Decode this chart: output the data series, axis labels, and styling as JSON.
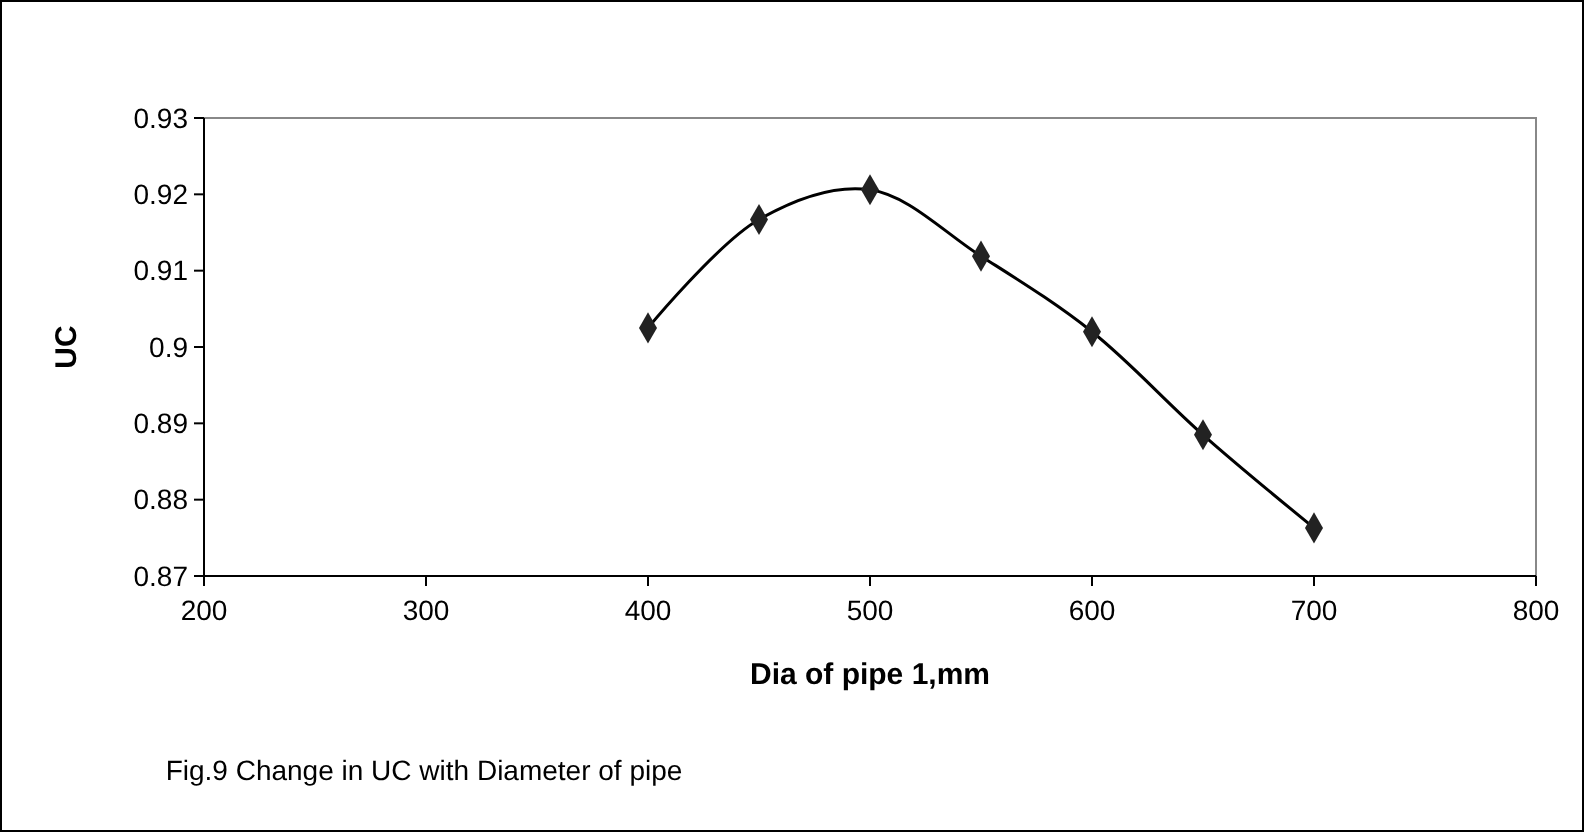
{
  "chart_data": {
    "type": "line",
    "xlabel": "Dia of pipe 1,mm",
    "ylabel": "UC",
    "annotations": [
      "Fig.9 Change in UC with Diameter of pipe"
    ],
    "x": [
      400,
      450,
      500,
      550,
      600,
      650,
      700
    ],
    "series": [
      {
        "color": "#000000",
        "values": [
          0.9025,
          0.9167,
          0.9206,
          0.9119,
          0.902,
          0.8885,
          0.8763
        ]
      }
    ],
    "xlim": [
      200,
      800
    ],
    "xticks": [
      200,
      300,
      400,
      500,
      600,
      700,
      800
    ],
    "ylim": [
      0.87,
      0.93
    ],
    "yticks": [
      0.87,
      0.88,
      0.89,
      0.9,
      0.91,
      0.92,
      0.93
    ],
    "marker": "diamond",
    "line_style": "solid",
    "grid": false
  }
}
